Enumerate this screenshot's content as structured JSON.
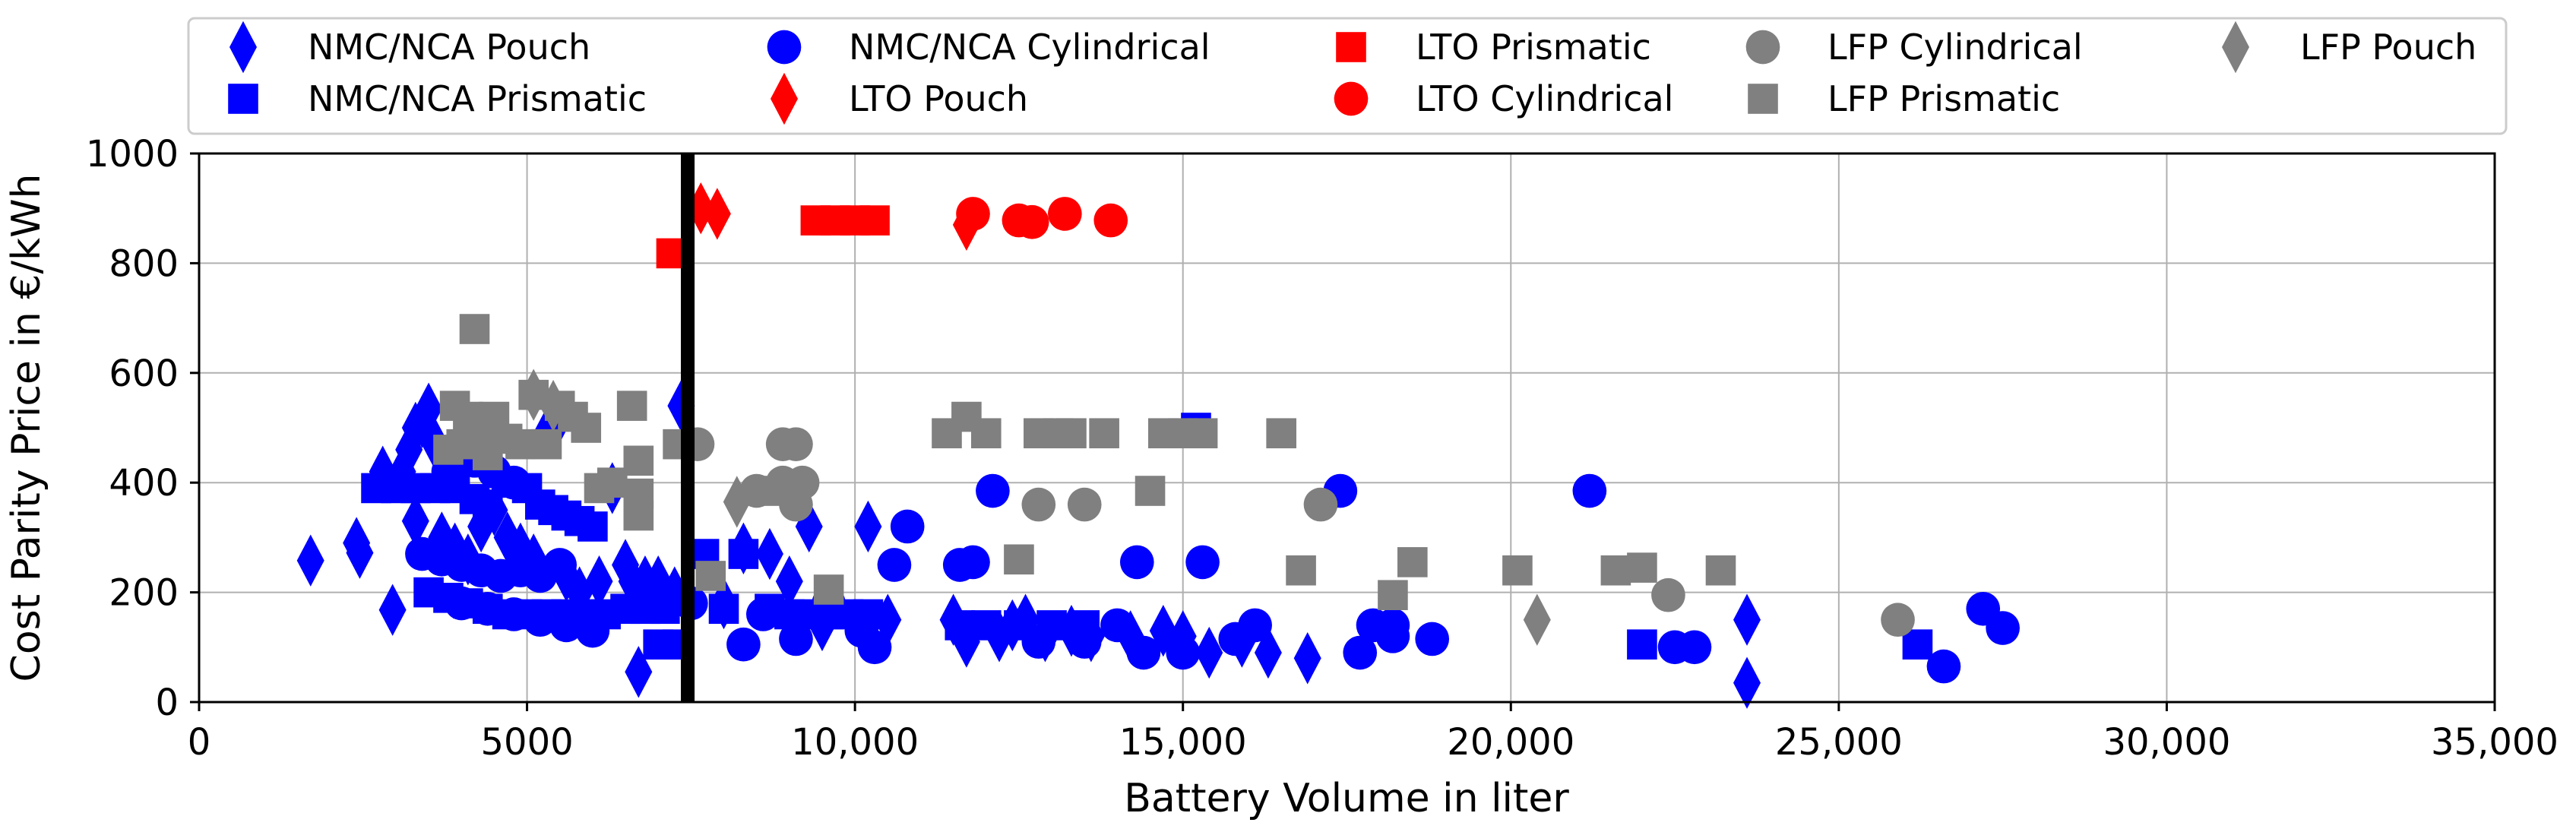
{
  "chart_data": {
    "type": "scatter",
    "xlabel": "Battery Volume in liter",
    "ylabel": "Cost Parity Price in €/kWh",
    "xlim": [
      0,
      35000
    ],
    "ylim": [
      0,
      1000
    ],
    "x_ticks": [
      {
        "value": 0,
        "label": "0"
      },
      {
        "value": 5000,
        "label": "5000"
      },
      {
        "value": 10000,
        "label": "10,000"
      },
      {
        "value": 15000,
        "label": "15,000"
      },
      {
        "value": 20000,
        "label": "20,000"
      },
      {
        "value": 25000,
        "label": "25,000"
      },
      {
        "value": 30000,
        "label": "30,000"
      },
      {
        "value": 35000,
        "label": "35,000"
      }
    ],
    "y_ticks": [
      {
        "value": 0,
        "label": "0"
      },
      {
        "value": 200,
        "label": "200"
      },
      {
        "value": 400,
        "label": "400"
      },
      {
        "value": 600,
        "label": "600"
      },
      {
        "value": 800,
        "label": "800"
      },
      {
        "value": 1000,
        "label": "1000"
      }
    ],
    "grid": true,
    "legend_placement": "top",
    "vertical_line": {
      "x": 7450,
      "color": "#000000"
    },
    "series": [
      {
        "name": "NMC/NCA Pouch",
        "marker": "diamond",
        "color": "#0000ff",
        "points": [
          [
            1700,
            258
          ],
          [
            2400,
            290
          ],
          [
            2450,
            272
          ],
          [
            2950,
            168
          ],
          [
            2800,
            420
          ],
          [
            3100,
            420
          ],
          [
            3200,
            460
          ],
          [
            3300,
            500
          ],
          [
            3400,
            510
          ],
          [
            3500,
            535
          ],
          [
            3600,
            470
          ],
          [
            3300,
            330
          ],
          [
            3700,
            300
          ],
          [
            3900,
            280
          ],
          [
            4100,
            260
          ],
          [
            4300,
            320
          ],
          [
            4500,
            350
          ],
          [
            4700,
            300
          ],
          [
            4900,
            280
          ],
          [
            5100,
            260
          ],
          [
            5300,
            490
          ],
          [
            5500,
            520
          ],
          [
            5600,
            230
          ],
          [
            5800,
            200
          ],
          [
            6100,
            220
          ],
          [
            6300,
            390
          ],
          [
            6500,
            250
          ],
          [
            6600,
            220
          ],
          [
            6700,
            55
          ],
          [
            6800,
            220
          ],
          [
            7000,
            220
          ],
          [
            7250,
            200
          ],
          [
            7350,
            540
          ],
          [
            8000,
            180
          ],
          [
            8300,
            280
          ],
          [
            8700,
            270
          ],
          [
            9000,
            220
          ],
          [
            9300,
            320
          ],
          [
            9500,
            140
          ],
          [
            10200,
            320
          ],
          [
            10500,
            150
          ],
          [
            11500,
            150
          ],
          [
            11700,
            110
          ],
          [
            12200,
            120
          ],
          [
            12400,
            140
          ],
          [
            12600,
            150
          ],
          [
            12900,
            120
          ],
          [
            13300,
            130
          ],
          [
            13600,
            120
          ],
          [
            14200,
            120
          ],
          [
            14700,
            130
          ],
          [
            15000,
            120
          ],
          [
            15400,
            90
          ],
          [
            15900,
            110
          ],
          [
            16300,
            90
          ],
          [
            16900,
            80
          ],
          [
            23600,
            150
          ],
          [
            23600,
            35
          ]
        ]
      },
      {
        "name": "NMC/NCA Prismatic",
        "marker": "square",
        "color": "#0000ff",
        "points": [
          [
            2700,
            390
          ],
          [
            3000,
            390
          ],
          [
            3300,
            390
          ],
          [
            3600,
            390
          ],
          [
            3900,
            390
          ],
          [
            4200,
            370
          ],
          [
            4400,
            360
          ],
          [
            4700,
            400
          ],
          [
            5000,
            390
          ],
          [
            5200,
            360
          ],
          [
            5400,
            350
          ],
          [
            5600,
            340
          ],
          [
            5800,
            330
          ],
          [
            6000,
            320
          ],
          [
            3500,
            200
          ],
          [
            3800,
            190
          ],
          [
            4100,
            180
          ],
          [
            4400,
            170
          ],
          [
            4700,
            160
          ],
          [
            5000,
            160
          ],
          [
            5300,
            160
          ],
          [
            5600,
            160
          ],
          [
            5900,
            160
          ],
          [
            6200,
            160
          ],
          [
            6500,
            170
          ],
          [
            6800,
            170
          ],
          [
            7100,
            170
          ],
          [
            7000,
            105
          ],
          [
            7300,
            105
          ],
          [
            7700,
            270
          ],
          [
            8000,
            170
          ],
          [
            8300,
            270
          ],
          [
            8700,
            170
          ],
          [
            9000,
            160
          ],
          [
            9300,
            160
          ],
          [
            9600,
            160
          ],
          [
            9900,
            160
          ],
          [
            10200,
            160
          ],
          [
            11600,
            140
          ],
          [
            12000,
            140
          ],
          [
            12500,
            140
          ],
          [
            13000,
            140
          ],
          [
            13500,
            140
          ],
          [
            15200,
            500
          ],
          [
            22000,
            105
          ],
          [
            26200,
            105
          ]
        ]
      },
      {
        "name": "NMC/NCA Cylindrical",
        "marker": "circle",
        "color": "#0000ff",
        "points": [
          [
            3400,
            270
          ],
          [
            3700,
            260
          ],
          [
            4000,
            250
          ],
          [
            4300,
            240
          ],
          [
            4600,
            230
          ],
          [
            4900,
            240
          ],
          [
            5200,
            230
          ],
          [
            5500,
            250
          ],
          [
            3800,
            420
          ],
          [
            4200,
            440
          ],
          [
            4500,
            420
          ],
          [
            4800,
            400
          ],
          [
            4000,
            180
          ],
          [
            4400,
            170
          ],
          [
            4800,
            160
          ],
          [
            5200,
            150
          ],
          [
            5600,
            140
          ],
          [
            6000,
            130
          ],
          [
            5000,
            250
          ],
          [
            6800,
            190
          ],
          [
            7500,
            180
          ],
          [
            8300,
            105
          ],
          [
            8600,
            160
          ],
          [
            9100,
            115
          ],
          [
            9600,
            180
          ],
          [
            10100,
            130
          ],
          [
            10300,
            100
          ],
          [
            10600,
            250
          ],
          [
            10800,
            320
          ],
          [
            11600,
            250
          ],
          [
            11800,
            255
          ],
          [
            12100,
            385
          ],
          [
            12800,
            110
          ],
          [
            13500,
            110
          ],
          [
            14000,
            140
          ],
          [
            14300,
            255
          ],
          [
            14400,
            90
          ],
          [
            15000,
            90
          ],
          [
            15300,
            255
          ],
          [
            15800,
            115
          ],
          [
            16100,
            140
          ],
          [
            17400,
            385
          ],
          [
            17700,
            90
          ],
          [
            17900,
            140
          ],
          [
            18200,
            140
          ],
          [
            18200,
            120
          ],
          [
            18800,
            115
          ],
          [
            21200,
            385
          ],
          [
            22500,
            100
          ],
          [
            22800,
            100
          ],
          [
            27200,
            170
          ],
          [
            26600,
            65
          ],
          [
            27500,
            135
          ]
        ]
      },
      {
        "name": "LTO Pouch",
        "marker": "diamond",
        "color": "#ff0000",
        "points": [
          [
            7650,
            900
          ],
          [
            7900,
            890
          ],
          [
            11700,
            870
          ]
        ]
      },
      {
        "name": "LTO Prismatic",
        "marker": "square",
        "color": "#ff0000",
        "points": [
          [
            7200,
            818
          ],
          [
            9400,
            878
          ],
          [
            9700,
            878
          ],
          [
            10000,
            878
          ],
          [
            10300,
            878
          ]
        ]
      },
      {
        "name": "LTO Cylindrical",
        "marker": "circle",
        "color": "#ff0000",
        "points": [
          [
            11800,
            890
          ],
          [
            12500,
            878
          ],
          [
            12700,
            875
          ],
          [
            13200,
            890
          ],
          [
            13900,
            878
          ]
        ]
      },
      {
        "name": "LFP Cylindrical",
        "marker": "circle",
        "color": "#808080",
        "points": [
          [
            7600,
            470
          ],
          [
            8500,
            385
          ],
          [
            8900,
            470
          ],
          [
            9100,
            470
          ],
          [
            8900,
            400
          ],
          [
            9100,
            360
          ],
          [
            9200,
            400
          ],
          [
            12800,
            360
          ],
          [
            13500,
            360
          ],
          [
            17100,
            360
          ],
          [
            22400,
            195
          ],
          [
            25900,
            150
          ]
        ]
      },
      {
        "name": "LFP Prismatic",
        "marker": "square",
        "color": "#808080",
        "points": [
          [
            3900,
            540
          ],
          [
            4100,
            520
          ],
          [
            4300,
            500
          ],
          [
            4500,
            520
          ],
          [
            4700,
            480
          ],
          [
            4900,
            470
          ],
          [
            5100,
            560
          ],
          [
            5300,
            470
          ],
          [
            5500,
            540
          ],
          [
            5700,
            520
          ],
          [
            5900,
            500
          ],
          [
            6100,
            390
          ],
          [
            6300,
            400
          ],
          [
            6600,
            540
          ],
          [
            6700,
            440
          ],
          [
            6700,
            380
          ],
          [
            6700,
            340
          ],
          [
            7300,
            470
          ],
          [
            3800,
            460
          ],
          [
            4200,
            680
          ],
          [
            4000,
            470
          ],
          [
            4400,
            450
          ],
          [
            7800,
            230
          ],
          [
            8700,
            385
          ],
          [
            9600,
            205
          ],
          [
            11400,
            490
          ],
          [
            11700,
            520
          ],
          [
            12000,
            490
          ],
          [
            12500,
            260
          ],
          [
            12800,
            490
          ],
          [
            13100,
            490
          ],
          [
            13300,
            490
          ],
          [
            13800,
            490
          ],
          [
            14500,
            385
          ],
          [
            14700,
            490
          ],
          [
            15000,
            490
          ],
          [
            15300,
            490
          ],
          [
            16500,
            490
          ],
          [
            16800,
            240
          ],
          [
            18200,
            195
          ],
          [
            18500,
            255
          ],
          [
            20100,
            240
          ],
          [
            21600,
            240
          ],
          [
            22000,
            245
          ],
          [
            23200,
            240
          ]
        ]
      },
      {
        "name": "LFP Pouch",
        "marker": "diamond",
        "color": "#808080",
        "points": [
          [
            5100,
            560
          ],
          [
            5400,
            540
          ],
          [
            8200,
            365
          ],
          [
            20400,
            150
          ]
        ]
      }
    ]
  }
}
